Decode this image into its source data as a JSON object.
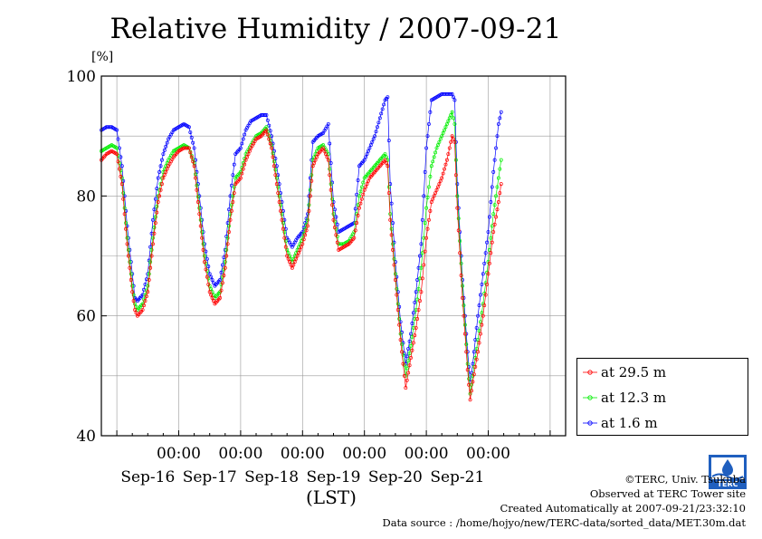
{
  "title": "Relative Humidity / 2007-09-21",
  "unit_label": "[%]",
  "xlabel": "(LST)",
  "legend": [
    {
      "label": "at 29.5 m",
      "color": "#ff0000"
    },
    {
      "label": "at 12.3 m",
      "color": "#00ee00"
    },
    {
      "label": "at 1.6 m",
      "color": "#0000ff"
    }
  ],
  "credits": {
    "copyright": "©TERC, Univ. Tsukuba",
    "observed": "Observed at TERC Tower site",
    "created": "Created Automatically at 2007-09-21/23:32:10",
    "source": "Data source : /home/hojyo/new/TERC-data/sorted_data/MET.30m.dat"
  },
  "logo_text": "TERC",
  "chart_data": {
    "type": "line",
    "title": "Relative Humidity / 2007-09-21",
    "ylabel": "[%]",
    "xlabel": "(LST)",
    "ylim": [
      40,
      100
    ],
    "yticks": [
      40,
      60,
      80,
      100
    ],
    "ygrid": [
      50,
      60,
      70,
      80,
      90
    ],
    "xlim_hours": [
      -30,
      150
    ],
    "xticks": [
      {
        "hour": 0,
        "time": "00:00",
        "date": "Sep-16"
      },
      {
        "hour": 24,
        "time": "00:00",
        "date": "Sep-17"
      },
      {
        "hour": 48,
        "time": "00:00",
        "date": "Sep-18"
      },
      {
        "hour": 72,
        "time": "00:00",
        "date": "Sep-19"
      },
      {
        "hour": 96,
        "time": "00:00",
        "date": "Sep-20"
      },
      {
        "hour": 120,
        "time": "00:00",
        "date": "Sep-21"
      }
    ],
    "xgrid_hours": [
      -24,
      0,
      24,
      48,
      72,
      96,
      120,
      144
    ],
    "grid": true,
    "legend_position": "outside-right-bottom",
    "series": [
      {
        "name": "at 29.5 m",
        "color": "#ff0000",
        "points": [
          [
            -30,
            86
          ],
          [
            -28,
            87
          ],
          [
            -26,
            87.5
          ],
          [
            -24,
            87
          ],
          [
            -22,
            82
          ],
          [
            -20,
            72
          ],
          [
            -18,
            64
          ],
          [
            -17,
            61
          ],
          [
            -16,
            60
          ],
          [
            -14,
            61
          ],
          [
            -12,
            64
          ],
          [
            -10,
            72
          ],
          [
            -8,
            79
          ],
          [
            -6,
            83
          ],
          [
            -4,
            85
          ],
          [
            -2,
            86.5
          ],
          [
            0,
            87.5
          ],
          [
            2,
            88
          ],
          [
            4,
            88
          ],
          [
            6,
            85
          ],
          [
            8,
            77
          ],
          [
            10,
            69
          ],
          [
            12,
            64
          ],
          [
            14,
            62
          ],
          [
            16,
            63
          ],
          [
            18,
            68
          ],
          [
            20,
            76
          ],
          [
            22,
            82
          ],
          [
            24,
            83
          ],
          [
            26,
            86
          ],
          [
            28,
            88
          ],
          [
            30,
            89.5
          ],
          [
            32,
            90
          ],
          [
            34,
            91
          ],
          [
            36,
            88
          ],
          [
            38,
            82
          ],
          [
            40,
            76
          ],
          [
            42,
            70
          ],
          [
            44,
            68
          ],
          [
            46,
            70
          ],
          [
            48,
            72
          ],
          [
            50,
            75
          ],
          [
            52,
            85
          ],
          [
            54,
            87
          ],
          [
            56,
            88
          ],
          [
            58,
            86
          ],
          [
            60,
            76
          ],
          [
            62,
            71
          ],
          [
            64,
            71.5
          ],
          [
            66,
            72
          ],
          [
            68,
            73
          ],
          [
            70,
            78
          ],
          [
            72,
            81
          ],
          [
            74,
            83
          ],
          [
            76,
            84
          ],
          [
            78,
            85
          ],
          [
            80,
            86
          ],
          [
            81,
            85
          ],
          [
            82,
            76
          ],
          [
            84,
            66
          ],
          [
            86,
            56
          ],
          [
            88,
            48
          ],
          [
            90,
            53
          ],
          [
            92,
            58
          ],
          [
            94,
            64
          ],
          [
            96,
            73
          ],
          [
            98,
            79
          ],
          [
            100,
            81
          ],
          [
            102,
            83
          ],
          [
            104,
            86
          ],
          [
            106,
            90
          ],
          [
            107,
            89
          ],
          [
            108,
            78
          ],
          [
            110,
            63
          ],
          [
            112,
            51
          ],
          [
            113,
            46
          ],
          [
            114,
            49
          ],
          [
            116,
            54
          ],
          [
            118,
            60
          ],
          [
            120,
            67
          ],
          [
            122,
            74
          ],
          [
            124,
            79
          ],
          [
            125,
            82
          ]
        ]
      },
      {
        "name": "at 12.3 m",
        "color": "#00ee00",
        "points": [
          [
            -30,
            87.5
          ],
          [
            -28,
            88
          ],
          [
            -26,
            88.5
          ],
          [
            -24,
            88
          ],
          [
            -22,
            83
          ],
          [
            -20,
            73
          ],
          [
            -18,
            65
          ],
          [
            -17,
            62
          ],
          [
            -16,
            61
          ],
          [
            -14,
            62
          ],
          [
            -12,
            65
          ],
          [
            -10,
            73
          ],
          [
            -8,
            80
          ],
          [
            -6,
            84
          ],
          [
            -4,
            86
          ],
          [
            -2,
            87.5
          ],
          [
            0,
            88
          ],
          [
            2,
            88.5
          ],
          [
            4,
            88
          ],
          [
            6,
            85.5
          ],
          [
            8,
            78
          ],
          [
            10,
            70
          ],
          [
            12,
            65
          ],
          [
            14,
            63
          ],
          [
            16,
            64
          ],
          [
            18,
            69
          ],
          [
            20,
            77
          ],
          [
            22,
            83
          ],
          [
            24,
            84
          ],
          [
            26,
            87
          ],
          [
            28,
            88.5
          ],
          [
            30,
            90
          ],
          [
            32,
            90.5
          ],
          [
            34,
            91.5
          ],
          [
            36,
            88.5
          ],
          [
            38,
            83
          ],
          [
            40,
            77
          ],
          [
            42,
            71
          ],
          [
            44,
            69
          ],
          [
            46,
            71
          ],
          [
            48,
            73
          ],
          [
            50,
            76
          ],
          [
            52,
            86
          ],
          [
            54,
            88
          ],
          [
            56,
            88.5
          ],
          [
            58,
            87
          ],
          [
            60,
            77
          ],
          [
            62,
            72
          ],
          [
            64,
            72
          ],
          [
            66,
            72.5
          ],
          [
            68,
            74
          ],
          [
            70,
            80
          ],
          [
            72,
            83
          ],
          [
            74,
            84
          ],
          [
            76,
            85
          ],
          [
            78,
            86
          ],
          [
            80,
            87
          ],
          [
            81,
            86
          ],
          [
            82,
            77
          ],
          [
            84,
            67
          ],
          [
            86,
            57
          ],
          [
            88,
            50
          ],
          [
            90,
            55
          ],
          [
            92,
            61
          ],
          [
            94,
            68
          ],
          [
            96,
            78
          ],
          [
            98,
            85
          ],
          [
            100,
            88
          ],
          [
            102,
            90
          ],
          [
            104,
            92
          ],
          [
            106,
            94
          ],
          [
            107,
            92
          ],
          [
            108,
            80
          ],
          [
            110,
            65
          ],
          [
            112,
            52
          ],
          [
            113,
            47
          ],
          [
            114,
            50
          ],
          [
            116,
            56
          ],
          [
            118,
            62
          ],
          [
            120,
            69
          ],
          [
            122,
            77
          ],
          [
            124,
            83
          ],
          [
            125,
            86
          ]
        ]
      },
      {
        "name": "at 1.6 m",
        "color": "#0000ff",
        "points": [
          [
            -30,
            91
          ],
          [
            -28,
            91.5
          ],
          [
            -26,
            91.5
          ],
          [
            -24,
            91
          ],
          [
            -22,
            85
          ],
          [
            -20,
            75
          ],
          [
            -18,
            67
          ],
          [
            -17,
            63
          ],
          [
            -16,
            62.5
          ],
          [
            -14,
            63.5
          ],
          [
            -12,
            67
          ],
          [
            -10,
            76
          ],
          [
            -8,
            83
          ],
          [
            -6,
            87
          ],
          [
            -4,
            89.5
          ],
          [
            -2,
            91
          ],
          [
            0,
            91.5
          ],
          [
            2,
            92
          ],
          [
            4,
            91.5
          ],
          [
            6,
            88
          ],
          [
            8,
            80
          ],
          [
            10,
            72
          ],
          [
            12,
            67
          ],
          [
            14,
            65
          ],
          [
            16,
            66
          ],
          [
            18,
            71
          ],
          [
            20,
            80
          ],
          [
            22,
            87
          ],
          [
            24,
            88
          ],
          [
            26,
            91
          ],
          [
            28,
            92.5
          ],
          [
            30,
            93
          ],
          [
            32,
            93.5
          ],
          [
            34,
            93.5
          ],
          [
            36,
            90
          ],
          [
            38,
            85
          ],
          [
            40,
            79
          ],
          [
            42,
            73
          ],
          [
            44,
            71.5
          ],
          [
            46,
            73
          ],
          [
            48,
            74
          ],
          [
            50,
            77
          ],
          [
            52,
            89
          ],
          [
            54,
            90
          ],
          [
            56,
            90.5
          ],
          [
            58,
            92
          ],
          [
            60,
            79
          ],
          [
            62,
            74
          ],
          [
            64,
            74.5
          ],
          [
            66,
            75
          ],
          [
            68,
            75.5
          ],
          [
            70,
            85
          ],
          [
            72,
            86
          ],
          [
            74,
            88
          ],
          [
            76,
            90
          ],
          [
            78,
            93
          ],
          [
            80,
            96
          ],
          [
            81,
            96.5
          ],
          [
            82,
            82
          ],
          [
            84,
            69
          ],
          [
            86,
            59
          ],
          [
            88,
            52
          ],
          [
            90,
            57
          ],
          [
            92,
            64
          ],
          [
            94,
            72
          ],
          [
            96,
            88
          ],
          [
            98,
            96
          ],
          [
            100,
            96.5
          ],
          [
            102,
            97
          ],
          [
            104,
            97
          ],
          [
            106,
            97
          ],
          [
            107,
            96
          ],
          [
            108,
            82
          ],
          [
            110,
            66
          ],
          [
            112,
            54
          ],
          [
            113,
            49
          ],
          [
            114,
            52
          ],
          [
            116,
            60
          ],
          [
            118,
            67
          ],
          [
            120,
            74
          ],
          [
            122,
            84
          ],
          [
            124,
            92
          ],
          [
            125,
            94
          ]
        ]
      }
    ]
  }
}
